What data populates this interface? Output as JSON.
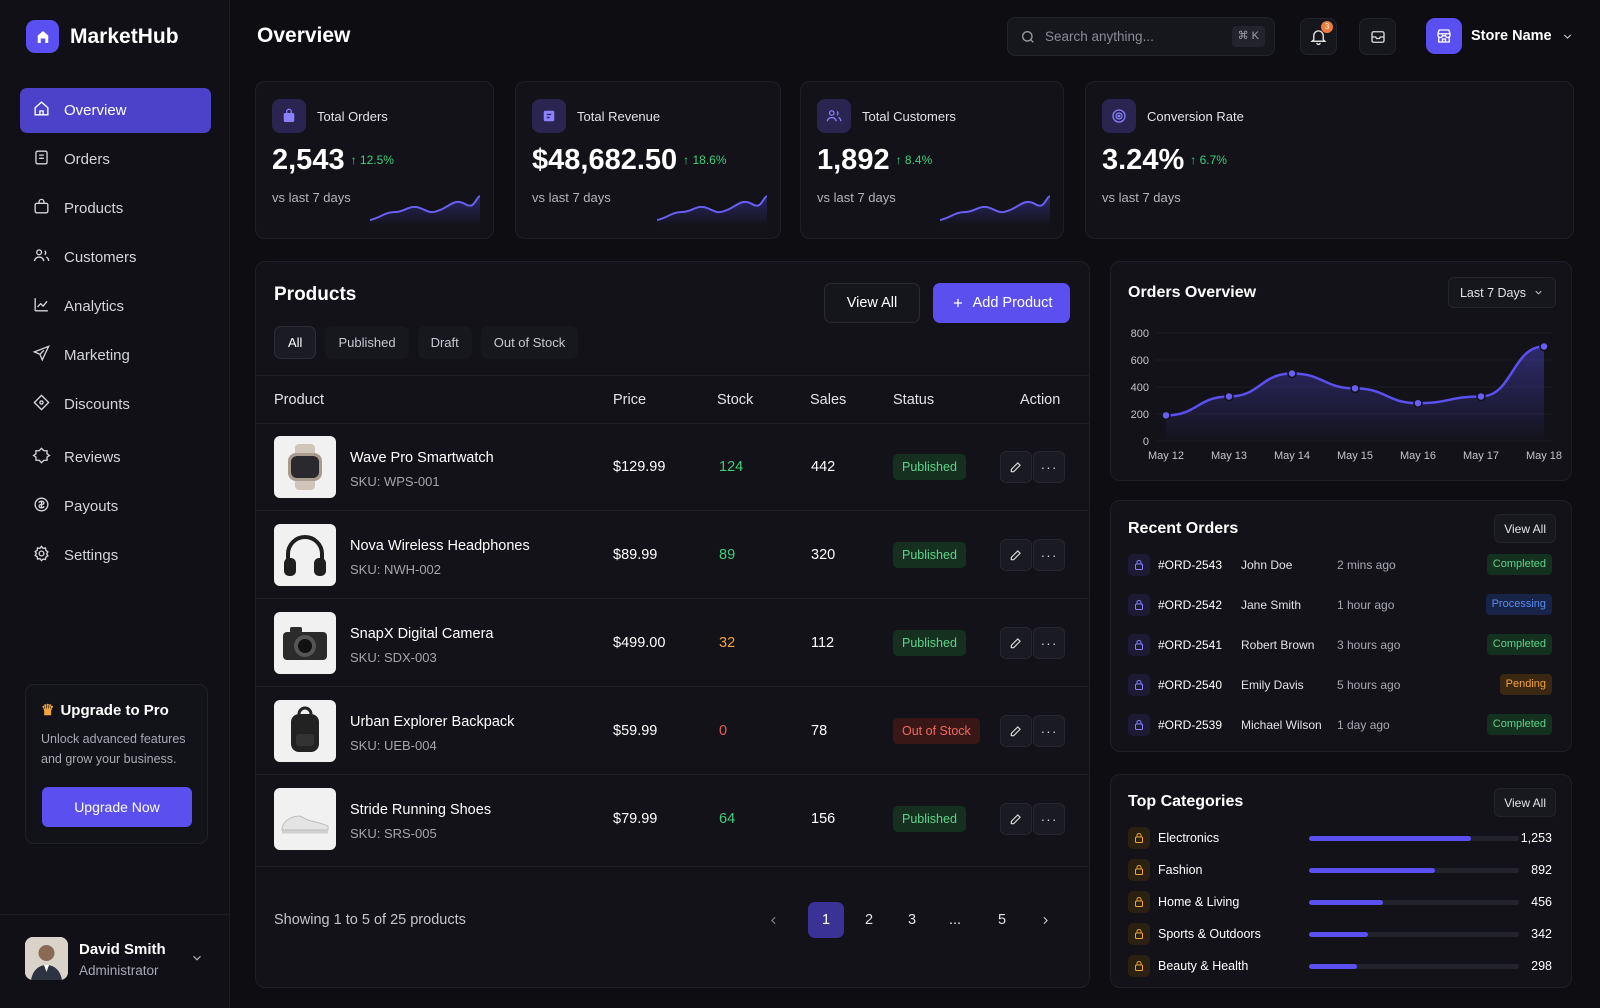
{
  "app": {
    "name": "MarketHub"
  },
  "sidebar": {
    "items": [
      {
        "label": "Overview",
        "icon": "home-icon",
        "active": true
      },
      {
        "label": "Orders",
        "icon": "orders-icon"
      },
      {
        "label": "Products",
        "icon": "products-icon"
      },
      {
        "label": "Customers",
        "icon": "customers-icon"
      },
      {
        "label": "Analytics",
        "icon": "analytics-icon"
      },
      {
        "label": "Marketing",
        "icon": "marketing-icon"
      },
      {
        "label": "Discounts",
        "icon": "discounts-icon"
      },
      {
        "label": "Reviews",
        "icon": "reviews-icon"
      },
      {
        "label": "Payouts",
        "icon": "payouts-icon"
      },
      {
        "label": "Settings",
        "icon": "settings-icon"
      }
    ],
    "upgrade": {
      "title": "Upgrade to Pro",
      "description": "Unlock advanced features and grow your business.",
      "button": "Upgrade Now"
    },
    "user": {
      "name": "David Smith",
      "role": "Administrator"
    }
  },
  "header": {
    "title": "Overview",
    "search_placeholder": "Search anything...",
    "shortcut": "⌘ K",
    "notification_count": "3",
    "store_name": "Store Name"
  },
  "stats": [
    {
      "label": "Total Orders",
      "value": "2,543",
      "change": "12.5%",
      "sub": "vs last 7 days",
      "icon": "bag-icon"
    },
    {
      "label": "Total Revenue",
      "value": "$48,682.50",
      "change": "18.6%",
      "sub": "vs last 7 days",
      "icon": "revenue-icon"
    },
    {
      "label": "Total Customers",
      "value": "1,892",
      "change": "8.4%",
      "sub": "vs last 7 days",
      "icon": "customers-icon"
    },
    {
      "label": "Conversion Rate",
      "value": "3.24%",
      "change": "6.7%",
      "sub": "vs last 7 days",
      "icon": "target-icon"
    }
  ],
  "products": {
    "title": "Products",
    "view_all": "View All",
    "add_product": "Add Product",
    "filters": [
      "All",
      "Published",
      "Draft",
      "Out of Stock"
    ],
    "columns": [
      "Product",
      "Price",
      "Stock",
      "Sales",
      "Status",
      "Action"
    ],
    "rows": [
      {
        "name": "Wave Pro Smartwatch",
        "sku": "SKU: WPS-001",
        "price": "$129.99",
        "stock": "124",
        "stock_color": "#3fcf7a",
        "sales": "442",
        "status": "Published",
        "thumb": "smartwatch-image"
      },
      {
        "name": "Nova Wireless Headphones",
        "sku": "SKU: NWH-002",
        "price": "$89.99",
        "stock": "89",
        "stock_color": "#3fcf7a",
        "sales": "320",
        "status": "Published",
        "thumb": "headphones-image"
      },
      {
        "name": "SnapX Digital Camera",
        "sku": "SKU: SDX-003",
        "price": "$499.00",
        "stock": "32",
        "stock_color": "#f5a33b",
        "sales": "112",
        "status": "Published",
        "thumb": "camera-image"
      },
      {
        "name": "Urban Explorer Backpack",
        "sku": "SKU: UEB-004",
        "price": "$59.99",
        "stock": "0",
        "stock_color": "#ef5a4e",
        "sales": "78",
        "status": "Out of Stock",
        "thumb": "backpack-image"
      },
      {
        "name": "Stride Running Shoes",
        "sku": "SKU: SRS-005",
        "price": "$79.99",
        "stock": "64",
        "stock_color": "#3fcf7a",
        "sales": "156",
        "status": "Published",
        "thumb": "shoes-image"
      }
    ],
    "pagination": {
      "summary": "Showing 1 to 5 of 25 products",
      "pages": [
        "1",
        "2",
        "3",
        "...",
        "5"
      ],
      "current": "1"
    }
  },
  "orders_overview": {
    "title": "Orders Overview",
    "range": "Last 7 Days"
  },
  "chart_data": {
    "type": "area",
    "x": [
      "May 12",
      "May 13",
      "May 14",
      "May 15",
      "May 16",
      "May 17",
      "May 18"
    ],
    "y_ticks": [
      "800",
      "600",
      "400",
      "200",
      "0"
    ],
    "ylim": [
      0,
      800
    ],
    "series": [
      {
        "values": [
          190,
          330,
          500,
          390,
          280,
          330,
          700
        ]
      }
    ],
    "color": "#5b4ff0"
  },
  "recent_orders": {
    "title": "Recent Orders",
    "view_all": "View All",
    "rows": [
      {
        "id": "#ORD-2543",
        "customer": "John Doe",
        "time": "2 mins ago",
        "status": "Completed",
        "kind": "comp"
      },
      {
        "id": "#ORD-2542",
        "customer": "Jane Smith",
        "time": "1 hour ago",
        "status": "Processing",
        "kind": "proc"
      },
      {
        "id": "#ORD-2541",
        "customer": "Robert Brown",
        "time": "3 hours ago",
        "status": "Completed",
        "kind": "comp"
      },
      {
        "id": "#ORD-2540",
        "customer": "Emily Davis",
        "time": "5 hours ago",
        "status": "Pending",
        "kind": "pend"
      },
      {
        "id": "#ORD-2539",
        "customer": "Michael Wilson",
        "time": "1 day ago",
        "status": "Completed",
        "kind": "comp"
      }
    ]
  },
  "top_categories": {
    "title": "Top Categories",
    "view_all": "View All",
    "rows": [
      {
        "name": "Electronics",
        "value": "1,253",
        "share": 0.77
      },
      {
        "name": "Fashion",
        "value": "892",
        "share": 0.6
      },
      {
        "name": "Home & Living",
        "value": "456",
        "share": 0.35
      },
      {
        "name": "Sports & Outdoors",
        "value": "342",
        "share": 0.28
      },
      {
        "name": "Beauty & Health",
        "value": "298",
        "share": 0.23
      }
    ]
  }
}
